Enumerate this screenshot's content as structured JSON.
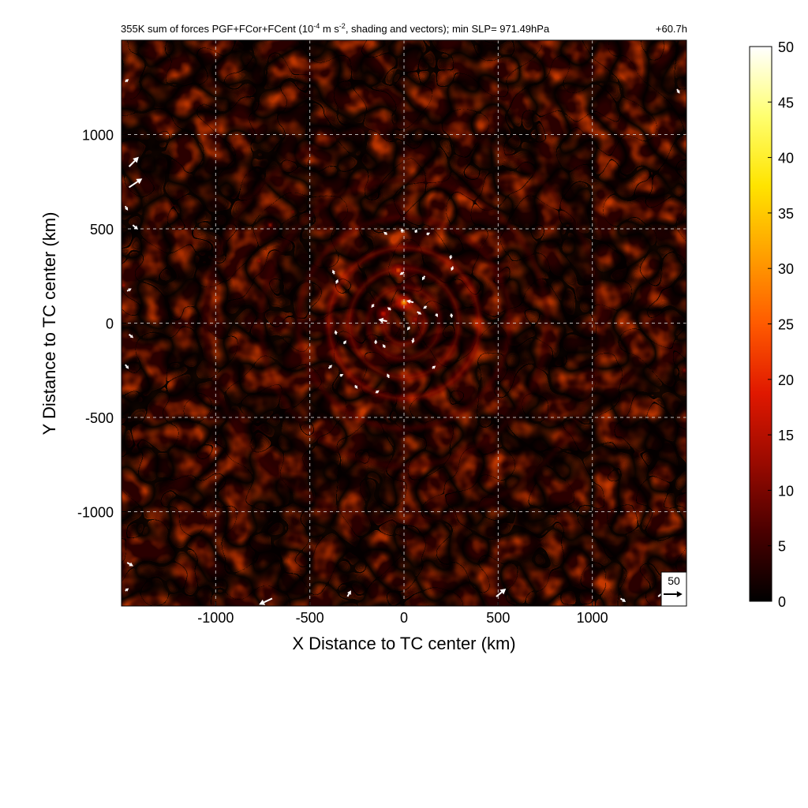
{
  "chart_data": {
    "type": "heatmap",
    "title": {
      "prefix": "355K sum of forces PGF+FCor+FCent (10",
      "exponent1": "-4",
      "mid": " m s",
      "exponent2": "-2",
      "suffix": ", shading and vectors); min SLP= 971.49hPa"
    },
    "time_label": "+60.7h",
    "xlabel": "X Distance to TC center (km)",
    "ylabel": "Y Distance to TC center (km)",
    "xlim": [
      -1500,
      1500
    ],
    "ylim": [
      -1500,
      1500
    ],
    "xticks": [
      -1000,
      -500,
      0,
      500,
      1000
    ],
    "yticks": [
      -1000,
      -500,
      0,
      500,
      1000
    ],
    "grid": true,
    "colorbar": {
      "min": 0,
      "max": 50,
      "ticks": [
        0,
        5,
        10,
        15,
        20,
        25,
        30,
        35,
        40,
        45,
        50
      ],
      "colors": [
        "#000000",
        "#4a0000",
        "#9a0a00",
        "#e01800",
        "#ff5a00",
        "#ffa000",
        "#ffe400",
        "#ffff70",
        "#ffffff"
      ]
    },
    "reference_vector": {
      "label": "50",
      "value": 50
    },
    "vectors": [
      {
        "x": -1480,
        "y": 1280,
        "u": 8,
        "v": 6
      },
      {
        "x": -1460,
        "y": 830,
        "u": 22,
        "v": 22
      },
      {
        "x": -1460,
        "y": 720,
        "u": 30,
        "v": 20
      },
      {
        "x": -1480,
        "y": 620,
        "u": 6,
        "v": -10
      },
      {
        "x": -1440,
        "y": 520,
        "u": 12,
        "v": -10
      },
      {
        "x": -1470,
        "y": 170,
        "u": 10,
        "v": 6
      },
      {
        "x": -1460,
        "y": -60,
        "u": 10,
        "v": -8
      },
      {
        "x": -1480,
        "y": -220,
        "u": 8,
        "v": -10
      },
      {
        "x": -1470,
        "y": -1270,
        "u": 14,
        "v": -8
      },
      {
        "x": -1480,
        "y": -1420,
        "u": 8,
        "v": 6
      },
      {
        "x": -700,
        "y": -1460,
        "u": -30,
        "v": -14
      },
      {
        "x": -300,
        "y": -1450,
        "u": 8,
        "v": 14
      },
      {
        "x": 490,
        "y": -1450,
        "u": 22,
        "v": 18
      },
      {
        "x": 1150,
        "y": -1460,
        "u": 12,
        "v": -8
      },
      {
        "x": 1350,
        "y": -1450,
        "u": 26,
        "v": 22
      },
      {
        "x": 1450,
        "y": 1240,
        "u": 6,
        "v": -10
      },
      {
        "x": -90,
        "y": 470,
        "u": -8,
        "v": 6
      },
      {
        "x": -10,
        "y": 480,
        "u": 0,
        "v": 10
      },
      {
        "x": 60,
        "y": 480,
        "u": 4,
        "v": 8
      },
      {
        "x": 120,
        "y": 470,
        "u": 8,
        "v": 4
      },
      {
        "x": 250,
        "y": 360,
        "u": -2,
        "v": -10
      },
      {
        "x": 260,
        "y": 300,
        "u": -4,
        "v": -10
      },
      {
        "x": -370,
        "y": 260,
        "u": -4,
        "v": 10
      },
      {
        "x": -360,
        "y": 210,
        "u": 4,
        "v": 10
      },
      {
        "x": 0,
        "y": 270,
        "u": -10,
        "v": -6
      },
      {
        "x": 110,
        "y": 250,
        "u": -6,
        "v": -10
      },
      {
        "x": -160,
        "y": 100,
        "u": -6,
        "v": -8
      },
      {
        "x": -70,
        "y": 70,
        "u": -8,
        "v": 6
      },
      {
        "x": -90,
        "y": 10,
        "u": -20,
        "v": 4
      },
      {
        "x": 50,
        "y": 110,
        "u": -16,
        "v": 4
      },
      {
        "x": 120,
        "y": 90,
        "u": -8,
        "v": -6
      },
      {
        "x": 70,
        "y": 60,
        "u": 10,
        "v": -6
      },
      {
        "x": 170,
        "y": 50,
        "u": 4,
        "v": -8
      },
      {
        "x": 250,
        "y": 50,
        "u": 2,
        "v": -10
      },
      {
        "x": 30,
        "y": -20,
        "u": -6,
        "v": -8
      },
      {
        "x": 50,
        "y": -80,
        "u": -2,
        "v": -12
      },
      {
        "x": -360,
        "y": -60,
        "u": -2,
        "v": 10
      },
      {
        "x": -320,
        "y": -110,
        "u": 6,
        "v": 8
      },
      {
        "x": -150,
        "y": -110,
        "u": 0,
        "v": 10
      },
      {
        "x": -100,
        "y": -130,
        "u": -6,
        "v": 8
      },
      {
        "x": -400,
        "y": -240,
        "u": 8,
        "v": 8
      },
      {
        "x": -340,
        "y": -280,
        "u": 8,
        "v": 4
      },
      {
        "x": -260,
        "y": -330,
        "u": 6,
        "v": -8
      },
      {
        "x": -150,
        "y": -370,
        "u": 8,
        "v": 6
      },
      {
        "x": -80,
        "y": -290,
        "u": -4,
        "v": 10
      },
      {
        "x": 150,
        "y": -240,
        "u": 8,
        "v": 6
      }
    ],
    "hotspots": [
      {
        "x": 0,
        "y": 110,
        "value": 32,
        "radius": 40
      },
      {
        "x": -30,
        "y": 280,
        "value": 26,
        "radius": 28
      },
      {
        "x": -110,
        "y": 50,
        "value": 18,
        "radius": 30
      },
      {
        "x": 60,
        "y": 20,
        "value": 14,
        "radius": 26
      },
      {
        "x": -710,
        "y": 520,
        "value": 20,
        "radius": 12
      },
      {
        "x": -770,
        "y": 330,
        "value": 16,
        "radius": 10
      },
      {
        "x": -590,
        "y": 590,
        "value": 12,
        "radius": 8
      },
      {
        "x": 1490,
        "y": -250,
        "value": 16,
        "radius": 12
      },
      {
        "x": -1490,
        "y": 200,
        "value": 18,
        "radius": 10
      }
    ],
    "rings": [
      {
        "radius": 110,
        "value": 14
      },
      {
        "radius": 190,
        "value": 11
      },
      {
        "radius": 290,
        "value": 13
      },
      {
        "radius": 400,
        "value": 15
      },
      {
        "radius": 560,
        "value": 8
      },
      {
        "radius": 760,
        "value": 6
      },
      {
        "radius": 1050,
        "value": 5
      }
    ]
  }
}
